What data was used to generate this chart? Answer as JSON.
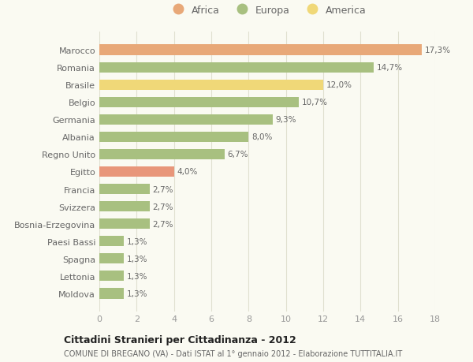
{
  "categories": [
    "Moldova",
    "Lettonia",
    "Spagna",
    "Paesi Bassi",
    "Bosnia-Erzegovina",
    "Svizzera",
    "Francia",
    "Egitto",
    "Regno Unito",
    "Albania",
    "Germania",
    "Belgio",
    "Brasile",
    "Romania",
    "Marocco"
  ],
  "values": [
    1.3,
    1.3,
    1.3,
    1.3,
    2.7,
    2.7,
    2.7,
    4.0,
    6.7,
    8.0,
    9.3,
    10.7,
    12.0,
    14.7,
    17.3
  ],
  "labels": [
    "1,3%",
    "1,3%",
    "1,3%",
    "1,3%",
    "2,7%",
    "2,7%",
    "2,7%",
    "4,0%",
    "6,7%",
    "8,0%",
    "9,3%",
    "10,7%",
    "12,0%",
    "14,7%",
    "17,3%"
  ],
  "colors": [
    "#a8c080",
    "#a8c080",
    "#a8c080",
    "#a8c080",
    "#a8c080",
    "#a8c080",
    "#a8c080",
    "#e8967a",
    "#a8c080",
    "#a8c080",
    "#a8c080",
    "#a8c080",
    "#f0d878",
    "#a8c080",
    "#e8a878"
  ],
  "legend_labels": [
    "Africa",
    "Europa",
    "America"
  ],
  "legend_colors": [
    "#e8a878",
    "#a8c080",
    "#f0d878"
  ],
  "title": "Cittadini Stranieri per Cittadinanza - 2012",
  "subtitle": "COMUNE DI BREGANO (VA) - Dati ISTAT al 1° gennaio 2012 - Elaborazione TUTTITALIA.IT",
  "xlim": [
    0,
    18
  ],
  "xticks": [
    0,
    2,
    4,
    6,
    8,
    10,
    12,
    14,
    16,
    18
  ],
  "background_color": "#fafaf2",
  "grid_color": "#e0e0d0",
  "bar_height": 0.6
}
